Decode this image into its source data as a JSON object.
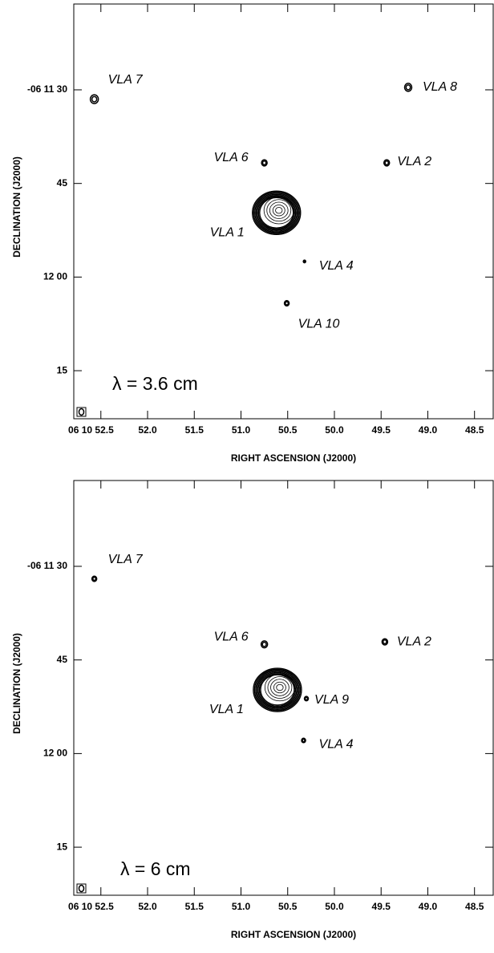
{
  "chart_data": [
    {
      "type": "contour",
      "annotation": "λ = 3.6 cm",
      "xlabel": "RIGHT ASCENSION (J2000)",
      "ylabel": "DECLINATION (J2000)",
      "xlim": [
        52.79,
        48.3
      ],
      "ylim": [
        82.7,
        16.25
      ],
      "xticks": [
        {
          "value": 52.5,
          "label": "06 10 52.5"
        },
        {
          "value": 52,
          "label": "52.0"
        },
        51.5,
        {
          "value": 51,
          "label": "51.0"
        },
        50.5,
        {
          "value": 50,
          "label": "50.0"
        },
        49.5,
        {
          "value": 49,
          "label": "49.0"
        },
        48.5
      ],
      "yticks": [
        {
          "value": 30,
          "label": "-06 11 30"
        },
        45,
        {
          "value": 60,
          "label": "12 00"
        },
        {
          "value": 75,
          "label": "15"
        }
      ],
      "sources": [
        {
          "name": "VLA 7",
          "x": 52.57,
          "y": 31.5
        },
        {
          "name": "VLA 8",
          "x": 49.21,
          "y": 29.6
        },
        {
          "name": "VLA 6",
          "x": 50.75,
          "y": 41.7
        },
        {
          "name": "VLA 2",
          "x": 49.44,
          "y": 41.7
        },
        {
          "name": "VLA 1",
          "x": 50.62,
          "y": 49.7
        },
        {
          "name": "VLA 4",
          "x": 50.32,
          "y": 57.5
        },
        {
          "name": "VLA 10",
          "x": 50.51,
          "y": 64.2
        }
      ]
    },
    {
      "type": "contour",
      "annotation": "λ = 6 cm",
      "xlabel": "RIGHT ASCENSION (J2000)",
      "ylabel": "DECLINATION (J2000)",
      "xlim": [
        52.79,
        48.3
      ],
      "ylim": [
        82.7,
        16.25
      ],
      "xticks": [
        {
          "value": 52.5,
          "label": "06 10 52.5"
        },
        {
          "value": 52,
          "label": "52.0"
        },
        51.5,
        {
          "value": 51,
          "label": "51.0"
        },
        50.5,
        {
          "value": 50,
          "label": "50.0"
        },
        49.5,
        {
          "value": 49,
          "label": "49.0"
        },
        48.5
      ],
      "yticks": [
        {
          "value": 30,
          "label": "-06 11 30"
        },
        45,
        {
          "value": 60,
          "label": "12 00"
        },
        {
          "value": 75,
          "label": "15"
        }
      ],
      "sources": [
        {
          "name": "VLA 7",
          "x": 52.57,
          "y": 32.0
        },
        {
          "name": "VLA 6",
          "x": 50.75,
          "y": 42.5
        },
        {
          "name": "VLA 2",
          "x": 49.46,
          "y": 42.1
        },
        {
          "name": "VLA 1",
          "x": 50.61,
          "y": 49.8
        },
        {
          "name": "VLA 9",
          "x": 50.3,
          "y": 51.2
        },
        {
          "name": "VLA 4",
          "x": 50.33,
          "y": 57.9
        }
      ]
    }
  ]
}
